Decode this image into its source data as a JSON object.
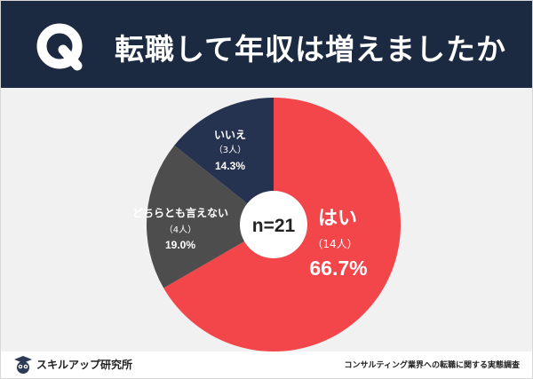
{
  "header": {
    "q_label": "Q",
    "question": "転職して年収は増えましたか"
  },
  "center_label": "n=21",
  "chart_data": {
    "type": "pie",
    "title": "転職して年収は増えましたか",
    "n": 21,
    "slices": [
      {
        "label": "はい",
        "count": 14,
        "count_text": "（14人）",
        "percent": 66.7,
        "percent_text": "66.7%",
        "color": "#f2464a"
      },
      {
        "label": "どちらとも言えない",
        "count": 4,
        "count_text": "（4人）",
        "percent": 19.0,
        "percent_text": "19.0%",
        "color": "#4d4d4d"
      },
      {
        "label": "いいえ",
        "count": 3,
        "count_text": "（3人）",
        "percent": 14.3,
        "percent_text": "14.3%",
        "color": "#263350"
      }
    ]
  },
  "footer": {
    "brand": "スキルアップ研究所",
    "source": "コンサルティング業界への転職に関する実態調査"
  },
  "colors": {
    "header_bg": "#1b2a41",
    "background": "#f1f1f1",
    "accent": "#f2464a"
  }
}
